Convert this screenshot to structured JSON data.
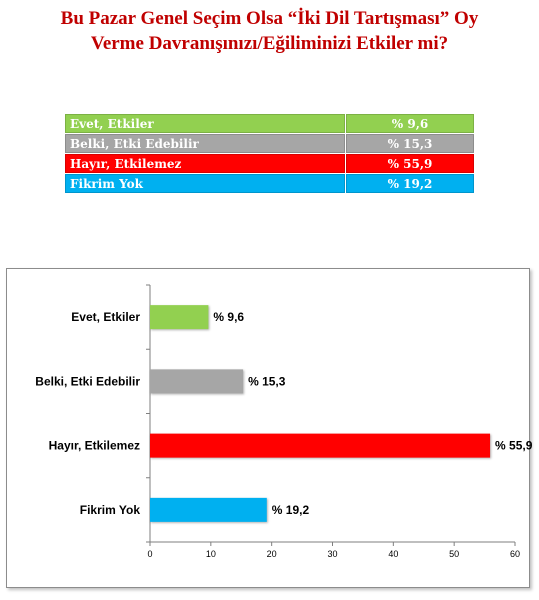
{
  "title_line1": "Bu Pazar Genel Seçim Olsa “İki Dil Tartışması” Oy",
  "title_line2": "Verme Davranışınızı/Eğiliminizi Etkiler  mi?",
  "table": [
    {
      "label": "Evet, Etkiler",
      "value": "% 9,6",
      "color": "#92d050"
    },
    {
      "label": "Belki, Etki Edebilir",
      "value": "% 15,3",
      "color": "#a6a6a6"
    },
    {
      "label": "Hayır, Etkilemez",
      "value": "% 55,9",
      "color": "#ff0000"
    },
    {
      "label": "Fikrim Yok",
      "value": "% 19,2",
      "color": "#00b0f0"
    }
  ],
  "chart_data": {
    "type": "bar",
    "orientation": "horizontal",
    "categories": [
      "Evet, Etkiler",
      "Belki, Etki Edebilir",
      "Hayır, Etkilemez",
      "Fikrim Yok"
    ],
    "values": [
      9.6,
      15.3,
      55.9,
      19.2
    ],
    "data_labels": [
      "% 9,6",
      "% 15,3",
      "% 55,9",
      "% 19,2"
    ],
    "colors": [
      "#92d050",
      "#a6a6a6",
      "#ff0000",
      "#00b0f0"
    ],
    "xlim": [
      0,
      60
    ],
    "xticks": [
      0,
      10,
      20,
      30,
      40,
      50,
      60
    ],
    "grid": false,
    "legend": "none"
  }
}
